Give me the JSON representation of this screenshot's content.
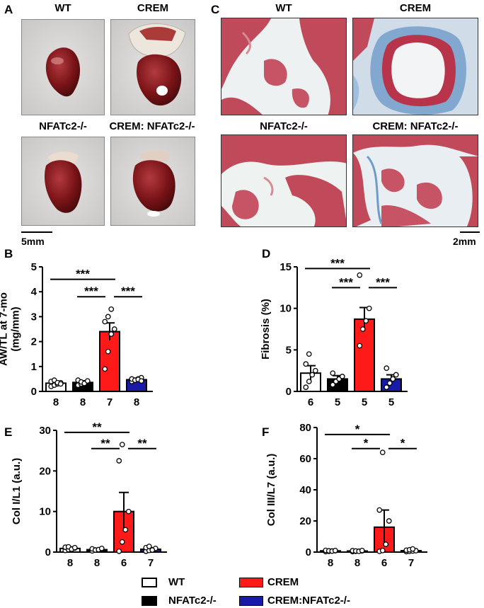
{
  "panels": {
    "A": {
      "letter": "A",
      "labels": [
        "WT",
        "CREM",
        "NFATc2-/-",
        "CREM: NFATc2-/-"
      ],
      "scale": "5mm"
    },
    "C": {
      "letter": "C",
      "labels": [
        "WT",
        "CREM",
        "NFATc2-/-",
        "CREM: NFATc2-/-"
      ],
      "scale": "2mm"
    }
  },
  "colors": {
    "WT": "#ffffff",
    "NFATc2": "#000000",
    "CREM": "#ff1a1a",
    "CREM_NFATc2": "#1a1aa8",
    "tissue_red": "#c8485a",
    "fibrosis_blue": "#5b8fc4",
    "heart": "#7a1418"
  },
  "chart_data": [
    {
      "id": "B",
      "letter": "B",
      "type": "bar",
      "ylabel": "AW/TL at 7-mo\n(mg/mm)",
      "ylim": [
        0,
        5
      ],
      "yticks": [
        0,
        1,
        2,
        3,
        4,
        5
      ],
      "groups": [
        "WT",
        "NFATc2-/-",
        "CREM",
        "CREM:NFATc2-/-"
      ],
      "values": [
        0.33,
        0.36,
        2.4,
        0.47
      ],
      "sem": [
        0.05,
        0.05,
        0.35,
        0.04
      ],
      "n_labels": [
        "8",
        "8",
        "7",
        "8"
      ],
      "points": [
        [
          0.2,
          0.25,
          0.3,
          0.35,
          0.4,
          0.45,
          0.35,
          0.3
        ],
        [
          0.25,
          0.3,
          0.35,
          0.4,
          0.45,
          0.38,
          0.32,
          0.42
        ],
        [
          0.9,
          1.6,
          2.3,
          2.5,
          2.8,
          3.0,
          3.3
        ],
        [
          0.4,
          0.45,
          0.5,
          0.55,
          0.5,
          0.45,
          0.48,
          0.42
        ]
      ],
      "brackets": [
        {
          "from": 0,
          "to": 2,
          "label": "***",
          "y": 4.5
        },
        {
          "from": 1,
          "to": 2,
          "label": "***",
          "y": 3.8
        },
        {
          "from": 2,
          "to": 3,
          "label": "***",
          "y": 3.8
        }
      ]
    },
    {
      "id": "D",
      "letter": "D",
      "type": "bar",
      "ylabel": "Fibrosis (%)",
      "ylim": [
        0,
        15
      ],
      "yticks": [
        0,
        5,
        10,
        15
      ],
      "groups": [
        "WT",
        "NFATc2-/-",
        "CREM",
        "CREM:NFATc2-/-"
      ],
      "values": [
        2.2,
        1.5,
        8.7,
        1.5
      ],
      "sem": [
        0.9,
        0.4,
        1.4,
        0.5
      ],
      "n_labels": [
        "6",
        "5",
        "5",
        "5"
      ],
      "points": [
        [
          0.5,
          1.2,
          2.0,
          2.5,
          3.3,
          4.5
        ],
        [
          0.8,
          1.2,
          1.5,
          1.8,
          2.2
        ],
        [
          5.5,
          7.5,
          8.5,
          10.0,
          14.0
        ],
        [
          0.5,
          1.0,
          1.5,
          2.0,
          2.8
        ]
      ],
      "brackets": [
        {
          "from": 0,
          "to": 2,
          "label": "***",
          "y": 14.8
        },
        {
          "from": 1,
          "to": 2,
          "label": "***",
          "y": 12.5
        },
        {
          "from": 2,
          "to": 3,
          "label": "***",
          "y": 12.5
        }
      ]
    },
    {
      "id": "E",
      "letter": "E",
      "type": "bar",
      "ylabel": "Col I/L1 (a.u.)",
      "ylim": [
        0,
        30
      ],
      "yticks": [
        0,
        10,
        20,
        30
      ],
      "groups": [
        "WT",
        "NFATc2-/-",
        "CREM",
        "CREM:NFATc2-/-"
      ],
      "values": [
        0.9,
        0.6,
        10.0,
        0.7
      ],
      "sem": [
        0.2,
        0.15,
        4.7,
        0.3
      ],
      "n_labels": [
        "8",
        "8",
        "6",
        "7"
      ],
      "points": [
        [
          0.4,
          0.6,
          0.8,
          1.0,
          1.2,
          1.3,
          0.7,
          1.1
        ],
        [
          0.3,
          0.5,
          0.6,
          0.7,
          0.8,
          0.5,
          0.6,
          0.9
        ],
        [
          0.2,
          2.5,
          5.5,
          10.0,
          22.5,
          26.5
        ],
        [
          0.2,
          0.4,
          0.6,
          0.9,
          1.1,
          1.4,
          0.5
        ]
      ],
      "brackets": [
        {
          "from": 0,
          "to": 2,
          "label": "**",
          "y": 29.5
        },
        {
          "from": 1,
          "to": 2,
          "label": "**",
          "y": 25.5
        },
        {
          "from": 2,
          "to": 3,
          "label": "**",
          "y": 25.5
        }
      ]
    },
    {
      "id": "F",
      "letter": "F",
      "type": "bar",
      "ylabel": "Col III/L7 (a.u.)",
      "ylim": [
        0,
        80
      ],
      "yticks": [
        0,
        20,
        40,
        60,
        80
      ],
      "groups": [
        "WT",
        "NFATc2-/-",
        "CREM",
        "CREM:NFATc2-/-"
      ],
      "values": [
        0.8,
        0.7,
        16.0,
        0.9
      ],
      "sem": [
        0.2,
        0.2,
        11.0,
        0.3
      ],
      "n_labels": [
        "8",
        "8",
        "6",
        "7"
      ],
      "points": [
        [
          0.3,
          0.5,
          0.7,
          0.9,
          1.1,
          0.8,
          0.6,
          1.0
        ],
        [
          0.3,
          0.5,
          0.6,
          0.8,
          0.9,
          0.7,
          0.5,
          1.0
        ],
        [
          0.5,
          1.0,
          5.0,
          20.0,
          27.0,
          64.0
        ],
        [
          0.3,
          0.5,
          0.7,
          0.9,
          1.2,
          1.5,
          2.0
        ]
      ],
      "brackets": [
        {
          "from": 0,
          "to": 2,
          "label": "*",
          "y": 75.5
        },
        {
          "from": 1,
          "to": 2,
          "label": "*",
          "y": 66.5
        },
        {
          "from": 2,
          "to": 3,
          "label": "*",
          "y": 66.5
        }
      ]
    }
  ],
  "legend": {
    "items": [
      {
        "label": "WT",
        "color": "#ffffff"
      },
      {
        "label": "NFATc2-/-",
        "color": "#000000"
      },
      {
        "label": "CREM",
        "color": "#ff1a1a"
      },
      {
        "label": "CREM:NFATc2-/-",
        "color": "#1a1aa8"
      }
    ]
  }
}
